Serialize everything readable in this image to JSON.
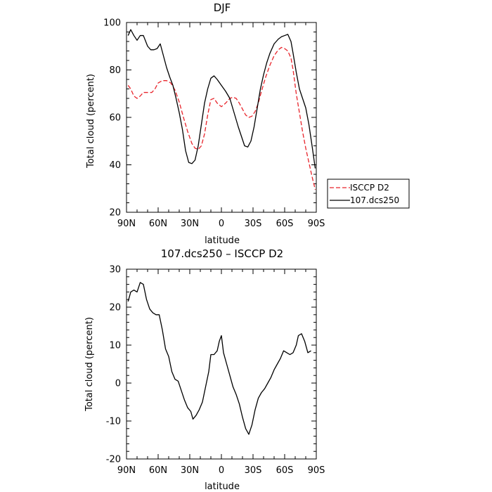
{
  "chart_data": [
    {
      "type": "line",
      "title": "DJF",
      "xlabel": "latitude",
      "ylabel": "Total cloud (percent)",
      "xlim": [
        90,
        -90
      ],
      "ylim": [
        20,
        100
      ],
      "xticks": [
        {
          "value": 90,
          "label": "90N"
        },
        {
          "value": 60,
          "label": "60N"
        },
        {
          "value": 30,
          "label": "30N"
        },
        {
          "value": 0,
          "label": "0"
        },
        {
          "value": -30,
          "label": "30S"
        },
        {
          "value": -60,
          "label": "60S"
        },
        {
          "value": -90,
          "label": "90S"
        }
      ],
      "yticks": [
        20,
        40,
        60,
        80,
        100
      ],
      "legend": "right",
      "series": [
        {
          "name": "ISCCP D2",
          "color": "#e8232a",
          "dash": true,
          "points": [
            [
              88.5,
              73.5
            ],
            [
              86,
              72
            ],
            [
              83,
              69
            ],
            [
              80,
              68
            ],
            [
              77,
              69
            ],
            [
              74,
              70.5
            ],
            [
              70,
              70.5
            ],
            [
              66,
              70.5
            ],
            [
              63,
              72
            ],
            [
              60,
              74.5
            ],
            [
              56,
              75.5
            ],
            [
              52,
              75.5
            ],
            [
              48,
              74.5
            ],
            [
              44,
              71.5
            ],
            [
              40,
              66.5
            ],
            [
              36,
              60
            ],
            [
              32,
              54
            ],
            [
              28,
              49
            ],
            [
              25,
              47
            ],
            [
              22,
              46.5
            ],
            [
              19,
              48
            ],
            [
              16,
              53
            ],
            [
              13,
              61
            ],
            [
              10,
              67.5
            ],
            [
              7,
              68
            ],
            [
              4,
              66
            ],
            [
              0,
              64.5
            ],
            [
              -4,
              66
            ],
            [
              -8,
              68
            ],
            [
              -11,
              68.5
            ],
            [
              -14,
              68
            ],
            [
              -17,
              66
            ],
            [
              -20,
              63.5
            ],
            [
              -23,
              61
            ],
            [
              -26,
              60
            ],
            [
              -29,
              60.5
            ],
            [
              -32,
              62.5
            ],
            [
              -35,
              66
            ],
            [
              -38,
              71
            ],
            [
              -42,
              77
            ],
            [
              -46,
              82
            ],
            [
              -50,
              86
            ],
            [
              -54,
              88.5
            ],
            [
              -57,
              89.5
            ],
            [
              -60,
              89
            ],
            [
              -63,
              88
            ],
            [
              -66,
              85
            ],
            [
              -68,
              80
            ],
            [
              -71,
              70
            ],
            [
              -74,
              62
            ],
            [
              -77,
              54
            ],
            [
              -80,
              47
            ],
            [
              -83,
              41
            ],
            [
              -86,
              35
            ],
            [
              -89,
              29.5
            ]
          ]
        },
        {
          "name": "107.dcs250",
          "color": "#000000",
          "dash": false,
          "points": [
            [
              88.5,
              94.5
            ],
            [
              86,
              97
            ],
            [
              83,
              94.5
            ],
            [
              80,
              92.5
            ],
            [
              77,
              94.5
            ],
            [
              74,
              94.5
            ],
            [
              70,
              90
            ],
            [
              67,
              88.5
            ],
            [
              64,
              88.5
            ],
            [
              61,
              89
            ],
            [
              58,
              91
            ],
            [
              55,
              86
            ],
            [
              52,
              81
            ],
            [
              49,
              77
            ],
            [
              46,
              73.5
            ],
            [
              43,
              68
            ],
            [
              40,
              62
            ],
            [
              37,
              55
            ],
            [
              34,
              46
            ],
            [
              31,
              41
            ],
            [
              28,
              40.5
            ],
            [
              25,
              42
            ],
            [
              22,
              48
            ],
            [
              19,
              57
            ],
            [
              16,
              66
            ],
            [
              13,
              72
            ],
            [
              10,
              76.5
            ],
            [
              7,
              77.5
            ],
            [
              4,
              76
            ],
            [
              0,
              73.5
            ],
            [
              -4,
              71
            ],
            [
              -8,
              68
            ],
            [
              -12,
              62
            ],
            [
              -16,
              56
            ],
            [
              -19,
              52
            ],
            [
              -22,
              48
            ],
            [
              -25,
              47.5
            ],
            [
              -28,
              50
            ],
            [
              -31,
              56
            ],
            [
              -34,
              64
            ],
            [
              -37,
              72
            ],
            [
              -40,
              78
            ],
            [
              -43,
              83
            ],
            [
              -46,
              87
            ],
            [
              -50,
              91
            ],
            [
              -54,
              93
            ],
            [
              -57,
              94
            ],
            [
              -60,
              94.5
            ],
            [
              -63,
              95
            ],
            [
              -66,
              92
            ],
            [
              -68,
              87
            ],
            [
              -71,
              79
            ],
            [
              -74,
              72
            ],
            [
              -77,
              68
            ],
            [
              -80,
              64
            ],
            [
              -83,
              57
            ],
            [
              -86,
              48
            ],
            [
              -89,
              38.5
            ]
          ]
        }
      ]
    },
    {
      "type": "line",
      "title": "107.dcs250 – ISCCP D2",
      "xlabel": "latitude",
      "ylabel": "Total cloud (percent)",
      "xlim": [
        90,
        -90
      ],
      "ylim": [
        -20,
        30
      ],
      "xticks": [
        {
          "value": 90,
          "label": "90N"
        },
        {
          "value": 60,
          "label": "60N"
        },
        {
          "value": 30,
          "label": "30N"
        },
        {
          "value": 0,
          "label": "0"
        },
        {
          "value": -30,
          "label": "30S"
        },
        {
          "value": -60,
          "label": "60S"
        },
        {
          "value": -90,
          "label": "90S"
        }
      ],
      "yticks": [
        -20,
        -10,
        0,
        10,
        20,
        30
      ],
      "series": [
        {
          "color": "#000000",
          "dash": false,
          "points": [
            [
              88.5,
              21.5
            ],
            [
              86,
              24
            ],
            [
              83,
              24.5
            ],
            [
              80,
              24
            ],
            [
              77,
              26.5
            ],
            [
              74,
              26
            ],
            [
              71,
              22
            ],
            [
              68,
              19.5
            ],
            [
              65,
              18.5
            ],
            [
              62,
              18
            ],
            [
              59,
              18
            ],
            [
              56,
              14
            ],
            [
              53,
              9
            ],
            [
              50,
              7
            ],
            [
              47,
              3
            ],
            [
              44,
              1
            ],
            [
              41,
              0.5
            ],
            [
              38,
              -2
            ],
            [
              35,
              -4.5
            ],
            [
              32,
              -6.5
            ],
            [
              29,
              -7.5
            ],
            [
              27,
              -9.5
            ],
            [
              24,
              -8.5
            ],
            [
              21,
              -7
            ],
            [
              18,
              -5
            ],
            [
              15,
              -1
            ],
            [
              12,
              3
            ],
            [
              10,
              7.5
            ],
            [
              7,
              7.5
            ],
            [
              4,
              8.5
            ],
            [
              2,
              11
            ],
            [
              0,
              12.5
            ],
            [
              -2,
              8
            ],
            [
              -5,
              5
            ],
            [
              -8,
              2
            ],
            [
              -11,
              -1
            ],
            [
              -14,
              -3
            ],
            [
              -17,
              -5.5
            ],
            [
              -20,
              -9
            ],
            [
              -23,
              -12
            ],
            [
              -26,
              -13.5
            ],
            [
              -29,
              -11
            ],
            [
              -32,
              -7
            ],
            [
              -35,
              -4
            ],
            [
              -38,
              -2.5
            ],
            [
              -41,
              -1.5
            ],
            [
              -44,
              0
            ],
            [
              -47,
              1.5
            ],
            [
              -50,
              3.5
            ],
            [
              -53,
              5
            ],
            [
              -56,
              6.5
            ],
            [
              -59,
              8.5
            ],
            [
              -62,
              8
            ],
            [
              -65,
              7.5
            ],
            [
              -68,
              8
            ],
            [
              -71,
              10
            ],
            [
              -73,
              12.5
            ],
            [
              -76,
              13
            ],
            [
              -79,
              11
            ],
            [
              -82,
              8
            ],
            [
              -85,
              8.5
            ]
          ]
        }
      ]
    }
  ]
}
